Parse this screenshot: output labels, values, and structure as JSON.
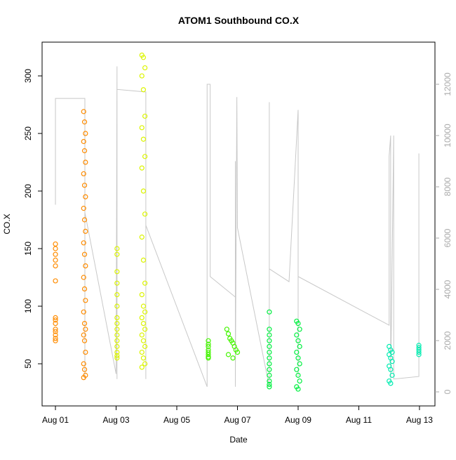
{
  "chart_data": {
    "type": "scatter",
    "title": "ATOM1 Southbound CO.X",
    "xlabel": "Date",
    "ylabel": "CO.X",
    "xlim": [
      -0.44,
      12.51
    ],
    "ylim": [
      13.4,
      329.3
    ],
    "y2lim": [
      -548,
      13644
    ],
    "xticks": [
      {
        "value": 0,
        "label": "Aug 01"
      },
      {
        "value": 2,
        "label": "Aug 03"
      },
      {
        "value": 4,
        "label": "Aug 05"
      },
      {
        "value": 6,
        "label": "Aug 07"
      },
      {
        "value": 8,
        "label": "Aug 09"
      },
      {
        "value": 10,
        "label": "Aug 11"
      },
      {
        "value": 12,
        "label": "Aug 13"
      }
    ],
    "yticks": [
      50,
      100,
      150,
      200,
      250,
      300
    ],
    "y2ticks": [
      0,
      2000,
      4000,
      6000,
      8000,
      10000,
      12000
    ],
    "series": [
      {
        "type": "scatter",
        "color": "#ff8c00",
        "x": [
          0,
          0,
          0,
          0,
          0,
          0,
          0,
          0,
          0,
          0,
          0,
          0,
          0,
          0,
          0.93,
          0.96,
          0.99,
          0.93,
          0.96,
          0.99,
          0.93,
          0.96,
          0.99,
          0.93,
          0.96,
          0.99,
          0.93,
          0.96,
          0.99,
          0.93,
          0.96,
          0.99,
          0.93,
          0.96,
          0.99,
          0.93,
          0.96,
          0.99,
          0.93,
          0.96,
          0.99,
          0.93
        ],
        "values": [
          154,
          150,
          145,
          140,
          135,
          122,
          90,
          85,
          80,
          75,
          72,
          70,
          78,
          88,
          269,
          260,
          250,
          243,
          235,
          225,
          215,
          205,
          195,
          185,
          175,
          165,
          155,
          145,
          135,
          125,
          115,
          105,
          95,
          85,
          80,
          75,
          70,
          60,
          50,
          45,
          40,
          38
        ]
      },
      {
        "type": "scatter",
        "color": "#dcf500",
        "x": [
          2.03,
          2.03,
          2.03,
          2.03,
          2.03,
          2.03,
          2.03,
          2.03,
          2.03,
          2.03,
          2.03,
          2.03,
          2.03,
          2.03,
          2.03,
          2.85,
          2.9,
          2.95,
          2.85,
          2.9,
          2.95,
          2.85,
          2.9,
          2.95,
          2.85,
          2.9,
          2.95,
          2.85,
          2.9,
          2.95,
          2.85,
          2.9,
          2.95,
          2.85,
          2.9,
          2.95,
          2.85,
          2.9,
          2.95,
          2.85,
          2.9,
          2.95,
          2.85
        ],
        "values": [
          150,
          145,
          130,
          120,
          110,
          100,
          90,
          85,
          80,
          75,
          70,
          65,
          60,
          57,
          55,
          318,
          316,
          307,
          300,
          288,
          265,
          255,
          245,
          230,
          220,
          200,
          180,
          160,
          140,
          120,
          110,
          100,
          95,
          90,
          85,
          80,
          75,
          70,
          65,
          60,
          55,
          50,
          47
        ]
      },
      {
        "type": "scatter",
        "color": "#44f500",
        "x": [
          5.04,
          5.04,
          5.04,
          5.04,
          5.04,
          5.04,
          5.04,
          5.04,
          5.65,
          5.7,
          5.75,
          5.8,
          5.85,
          5.9,
          5.95,
          6.0,
          5.7,
          5.85
        ],
        "values": [
          70,
          67,
          65,
          62,
          60,
          58,
          56,
          55,
          80,
          76,
          72,
          70,
          68,
          65,
          62,
          60,
          58,
          55
        ]
      },
      {
        "type": "scatter",
        "color": "#00f040",
        "x": [
          7.05,
          7.05,
          7.05,
          7.05,
          7.05,
          7.05,
          7.05,
          7.05,
          7.05,
          7.05,
          7.05,
          7.05,
          7.05,
          7.95,
          8.0,
          8.05,
          7.95,
          8.0,
          8.05,
          7.95,
          8.0,
          8.05,
          7.95,
          8.0,
          8.05,
          7.95,
          8.0
        ],
        "values": [
          95,
          80,
          75,
          70,
          65,
          60,
          55,
          50,
          45,
          40,
          35,
          32,
          30,
          87,
          85,
          80,
          75,
          70,
          65,
          60,
          55,
          50,
          45,
          40,
          35,
          30,
          28
        ]
      },
      {
        "type": "scatter",
        "color": "#00ecb0",
        "x": [
          11.0,
          11.05,
          11.1,
          11.0,
          11.05,
          11.1,
          11.0,
          11.05,
          11.1,
          11.0,
          11.05,
          11.98,
          11.98,
          11.98,
          11.98,
          11.98
        ],
        "values": [
          65,
          62,
          60,
          58,
          55,
          52,
          48,
          45,
          40,
          35,
          33,
          66,
          64,
          62,
          60,
          58
        ]
      },
      {
        "type": "line",
        "axis": "y2",
        "color": "#c8c8c8",
        "x": [
          0,
          0,
          0.97,
          0.97,
          0.97,
          2.0,
          2.03,
          2.03,
          2.03,
          2.98,
          2.98,
          2.98,
          2.98,
          5.0,
          5.0,
          5.1,
          5.1,
          5.93,
          5.93,
          5.93,
          5.98,
          6.0,
          7.05,
          7.05,
          7.05,
          7.7,
          8.0,
          8.0,
          8.0,
          11.0,
          11.0,
          11.05,
          11.05,
          11.15,
          11.15,
          11.98,
          11.98,
          11.98
        ],
        "values": [
          7300,
          11450,
          11450,
          500,
          7000,
          700,
          12700,
          500,
          11800,
          11700,
          500,
          10000,
          6500,
          200,
          12000,
          12000,
          4500,
          3700,
          9000,
          200,
          11500,
          6400,
          200,
          11300,
          4800,
          4300,
          11000,
          600,
          4500,
          2600,
          9200,
          10000,
          400,
          10000,
          500,
          600,
          9300,
          1000
        ]
      }
    ]
  }
}
